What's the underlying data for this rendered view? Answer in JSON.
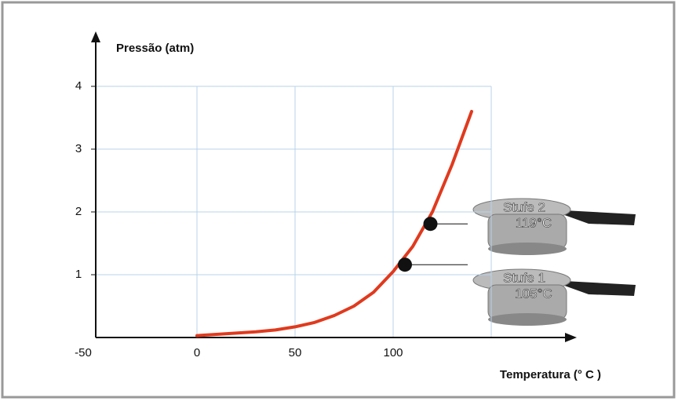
{
  "chart_data": {
    "type": "line",
    "ylabel": "Pressão (atm)",
    "xlabel": "Temperatura (° C )",
    "x": [
      0,
      10,
      20,
      30,
      40,
      50,
      60,
      70,
      80,
      90,
      100,
      110,
      120,
      130,
      140
    ],
    "series": [
      {
        "color": "#e03a1e",
        "values": [
          0.03,
          0.05,
          0.07,
          0.09,
          0.12,
          0.17,
          0.24,
          0.35,
          0.5,
          0.72,
          1.05,
          1.45,
          2.0,
          2.75,
          3.6
        ]
      }
    ],
    "xlim": [
      -50,
      150
    ],
    "ylim": [
      0,
      4
    ],
    "xticks": [
      -50,
      0,
      50,
      100
    ],
    "yticks": [
      1,
      2,
      3,
      4
    ],
    "grid": true,
    "annotations": [
      {
        "x": 119,
        "y": 1.81,
        "level": "Stufe 2",
        "temp": "119°C"
      },
      {
        "x": 106,
        "y": 1.16,
        "level": "Stufe 1",
        "temp": "105°C"
      }
    ]
  }
}
